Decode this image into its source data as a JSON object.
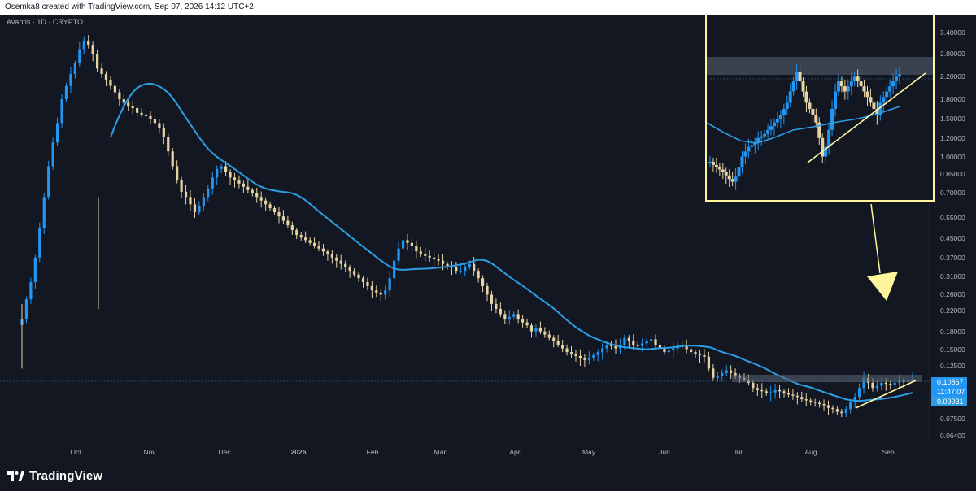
{
  "header": {
    "caption": "Osemka8 created with TradingView.com, Sep 07, 2026 14:12 UTC+2"
  },
  "footer": {
    "brand": "TradingView"
  },
  "chart_data": {
    "type": "candlestick",
    "symbol_label": "Avantis · 1D · CRYPTO",
    "y_scale": "log",
    "y_ticks": [
      "3.40000",
      "2.80000",
      "2.20000",
      "1.80000",
      "1.50000",
      "1.20000",
      "1.00000",
      "0.85000",
      "0.70000",
      "0.55000",
      "0.45000",
      "0.37000",
      "0.31000",
      "0.26000",
      "0.22000",
      "0.18000",
      "0.15000",
      "0.12500",
      "0.07500",
      "0.06400"
    ],
    "x_ticks": [
      "Oct",
      "Nov",
      "Dec",
      "2026",
      "Feb",
      "Mar",
      "Apr",
      "May",
      "Jun",
      "Jul",
      "Aug",
      "Sep"
    ],
    "last_price": "0.10867",
    "countdown": "11:47:07",
    "ma_value": "0.09931",
    "colors": {
      "up": "#2196f3",
      "down": "#e6d3a3",
      "ma": "#2d9ee3",
      "annotation": "#fff59d",
      "bg": "#131722"
    },
    "main_candles_yhat": [
      0.19,
      0.23,
      0.27,
      0.34,
      0.45,
      0.6,
      0.8,
      1.0,
      1.2,
      1.5,
      1.7,
      1.9,
      2.1,
      2.4,
      2.6,
      2.5,
      2.3,
      2.0,
      1.9,
      1.8,
      1.7,
      1.6,
      1.5,
      1.45,
      1.4,
      1.38,
      1.32,
      1.3,
      1.28,
      1.25,
      1.2,
      1.15,
      1.05,
      0.92,
      0.8,
      0.7,
      0.63,
      0.6,
      0.56,
      0.52,
      0.55,
      0.6,
      0.65,
      0.72,
      0.78,
      0.8,
      0.76,
      0.72,
      0.7,
      0.68,
      0.66,
      0.64,
      0.62,
      0.6,
      0.58,
      0.56,
      0.54,
      0.52,
      0.5,
      0.48,
      0.46,
      0.44,
      0.42,
      0.41,
      0.4,
      0.39,
      0.38,
      0.37,
      0.36,
      0.35,
      0.34,
      0.33,
      0.32,
      0.31,
      0.3,
      0.29,
      0.28,
      0.27,
      0.26,
      0.25,
      0.245,
      0.24,
      0.25,
      0.28,
      0.33,
      0.37,
      0.4,
      0.39,
      0.38,
      0.36,
      0.35,
      0.345,
      0.34,
      0.335,
      0.33,
      0.32,
      0.315,
      0.31,
      0.3,
      0.3,
      0.31,
      0.32,
      0.3,
      0.28,
      0.26,
      0.24,
      0.22,
      0.21,
      0.2,
      0.19,
      0.195,
      0.2,
      0.19,
      0.185,
      0.18,
      0.17,
      0.175,
      0.17,
      0.165,
      0.16,
      0.155,
      0.15,
      0.145,
      0.14,
      0.138,
      0.135,
      0.132,
      0.13,
      0.133,
      0.136,
      0.14,
      0.145,
      0.15,
      0.148,
      0.145,
      0.15,
      0.16,
      0.155,
      0.15,
      0.148,
      0.152,
      0.155,
      0.158,
      0.15,
      0.145,
      0.14,
      0.142,
      0.145,
      0.15,
      0.148,
      0.144,
      0.14,
      0.138,
      0.136,
      0.134,
      0.12,
      0.11,
      0.112,
      0.115,
      0.118,
      0.115,
      0.112,
      0.11,
      0.108,
      0.105,
      0.1,
      0.098,
      0.097,
      0.095,
      0.096,
      0.098,
      0.097,
      0.095,
      0.094,
      0.093,
      0.092,
      0.09,
      0.089,
      0.088,
      0.087,
      0.086,
      0.085,
      0.083,
      0.082,
      0.08,
      0.079,
      0.082,
      0.088,
      0.092,
      0.1,
      0.11,
      0.105,
      0.1,
      0.102,
      0.105,
      0.104,
      0.103,
      0.105,
      0.107,
      0.106,
      0.108,
      0.109
    ],
    "inset": {
      "description_free": true,
      "y_ticks_shared": true
    }
  }
}
